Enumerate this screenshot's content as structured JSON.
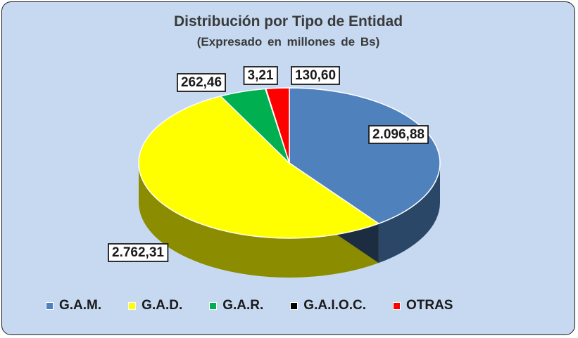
{
  "chart_data": {
    "type": "pie",
    "title": "Distribución por Tipo de Entidad",
    "subtitle": "(Expresado en millones  de Bs)",
    "slices": [
      {
        "name": "G.A.M.",
        "value": 2096.88,
        "label": "2.096,88",
        "color": "#4f81bd"
      },
      {
        "name": "G.A.D.",
        "value": 2762.31,
        "label": "2.762,31",
        "color": "#ffff00"
      },
      {
        "name": "G.A.R.",
        "value": 262.46,
        "label": "262,46",
        "color": "#00b050"
      },
      {
        "name": "G.A.I.O.C.",
        "value": 3.21,
        "label": "3,21",
        "color": "#000000"
      },
      {
        "name": "OTRAS",
        "value": 130.6,
        "label": "130,60",
        "color": "#ff0000"
      }
    ],
    "legend_position": "bottom"
  }
}
